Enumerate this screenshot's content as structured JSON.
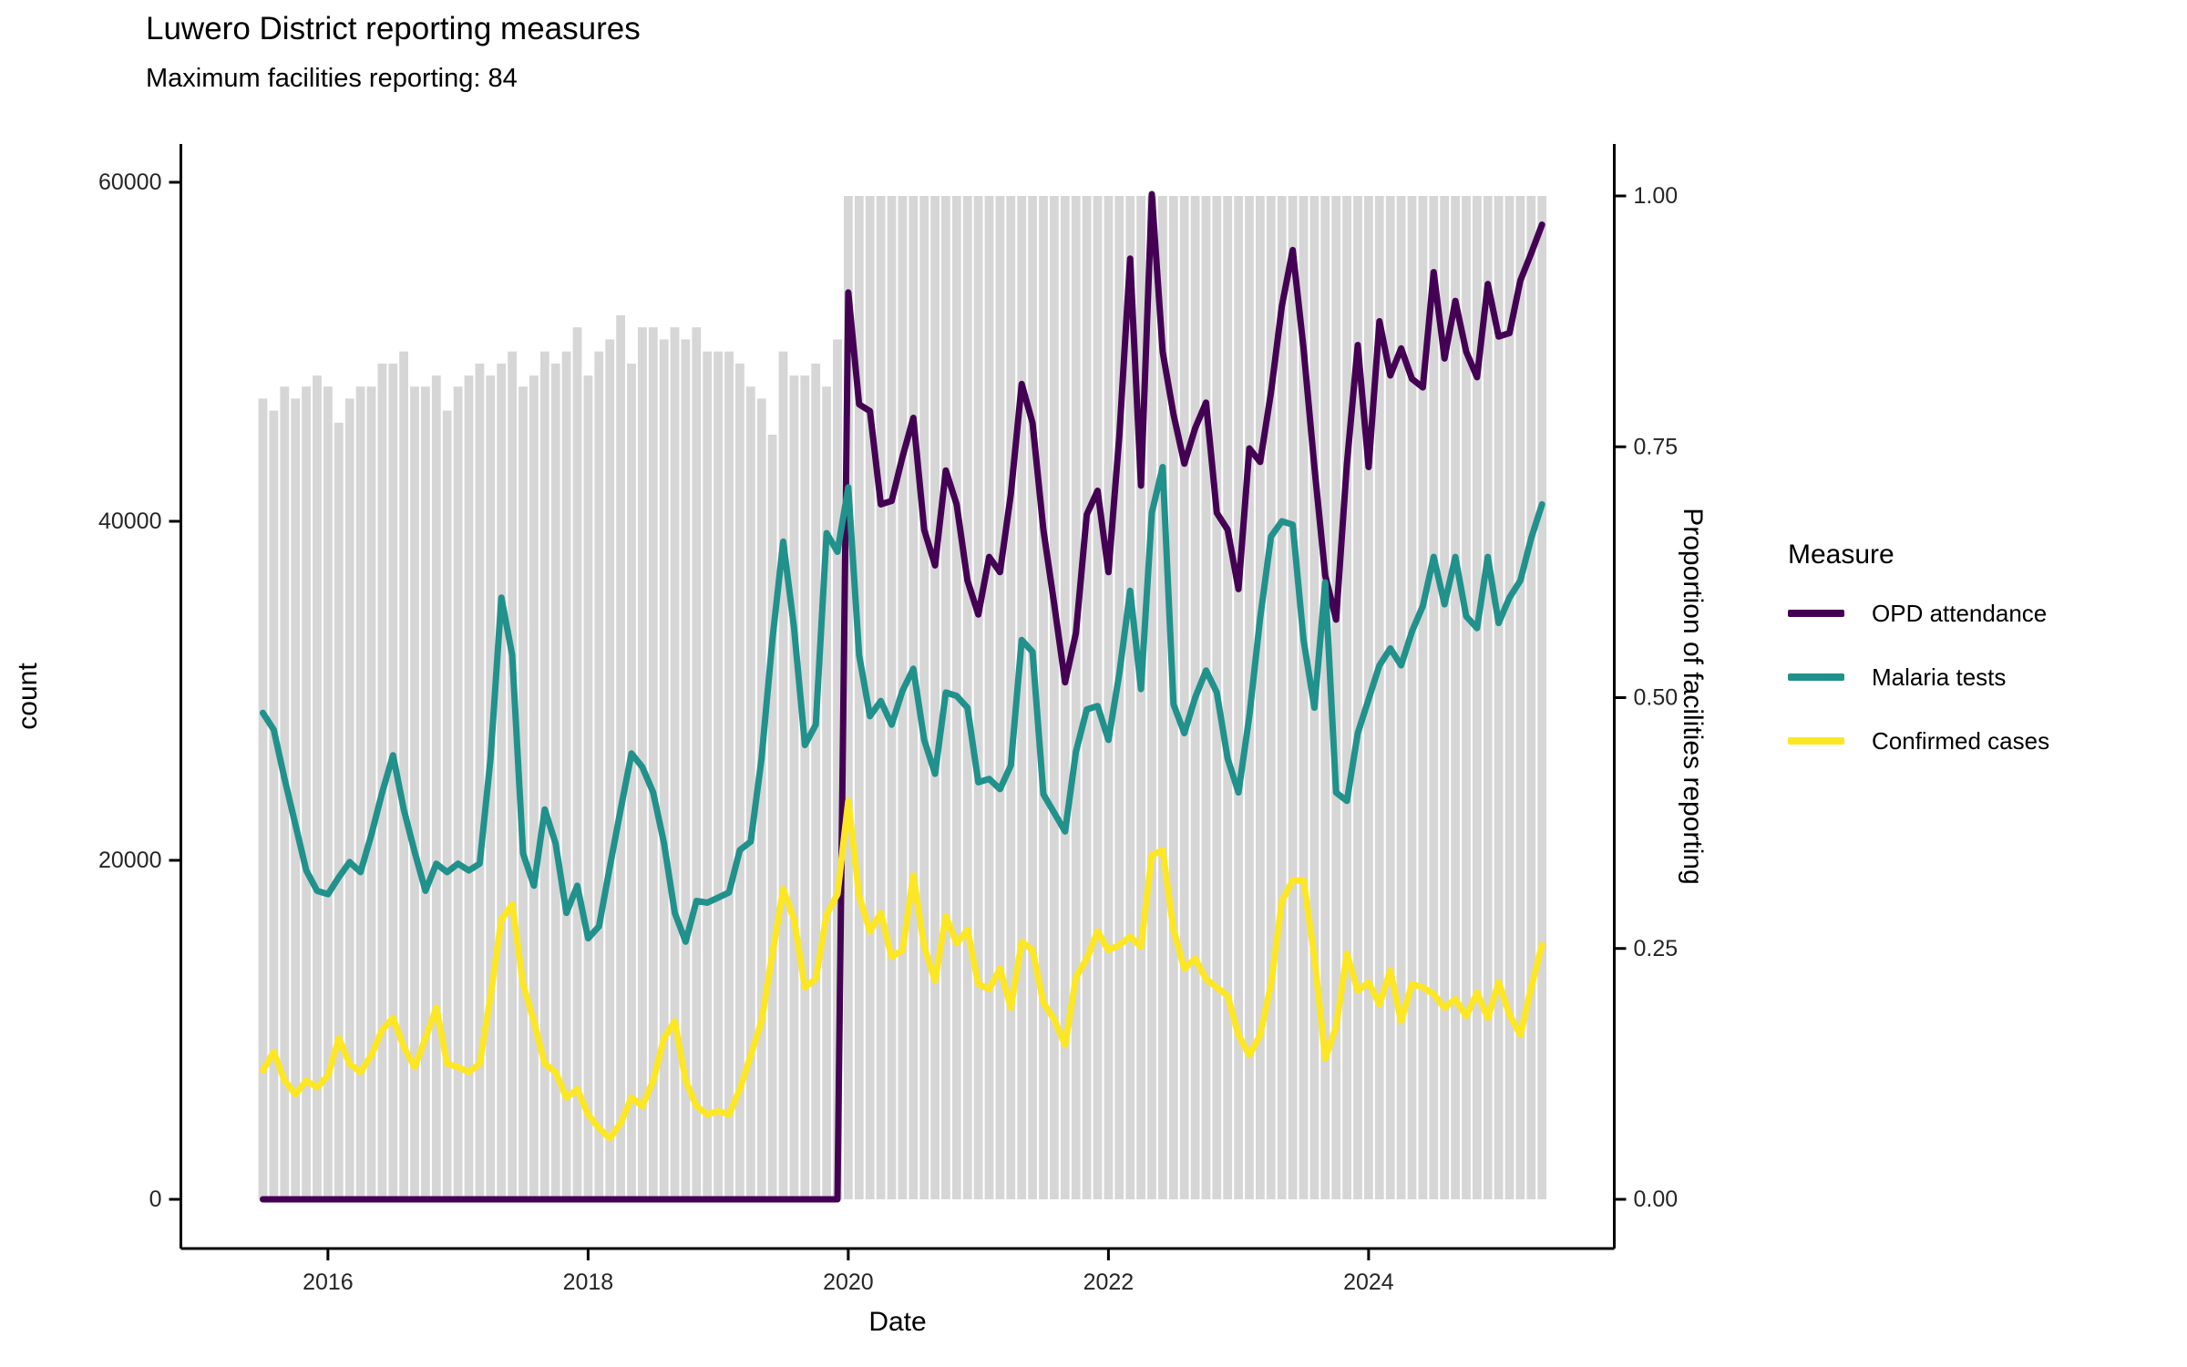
{
  "chart_data": {
    "type": "line+bar",
    "title": "Luwero District reporting measures",
    "subtitle": "Maximum facilities reporting: 84",
    "xlabel": "Date",
    "ylabel": "count",
    "y2label": "Proportion of facilities reporting",
    "legend_title": "Measure",
    "legend_position": "right",
    "grid": false,
    "background_color": "#ffffff",
    "y_axis": {
      "min": 0,
      "max": 60000,
      "ticks": [
        0,
        20000,
        40000,
        60000
      ],
      "labels": [
        "0",
        "20000",
        "40000",
        "60000"
      ]
    },
    "y2_axis": {
      "min": 0,
      "max": 1,
      "ticks": [
        0,
        0.25,
        0.5,
        0.75,
        1
      ],
      "labels": [
        "0.00",
        "0.25",
        "0.50",
        "0.75",
        "1.00"
      ]
    },
    "x_axis": {
      "tick_years": [
        2016,
        2018,
        2020,
        2022,
        2024
      ],
      "labels": [
        "2016",
        "2018",
        "2020",
        "2022",
        "2024"
      ]
    },
    "months": [
      "2015-07",
      "2015-08",
      "2015-09",
      "2015-10",
      "2015-11",
      "2015-12",
      "2016-01",
      "2016-02",
      "2016-03",
      "2016-04",
      "2016-05",
      "2016-06",
      "2016-07",
      "2016-08",
      "2016-09",
      "2016-10",
      "2016-11",
      "2016-12",
      "2017-01",
      "2017-02",
      "2017-03",
      "2017-04",
      "2017-05",
      "2017-06",
      "2017-07",
      "2017-08",
      "2017-09",
      "2017-10",
      "2017-11",
      "2017-12",
      "2018-01",
      "2018-02",
      "2018-03",
      "2018-04",
      "2018-05",
      "2018-06",
      "2018-07",
      "2018-08",
      "2018-09",
      "2018-10",
      "2018-11",
      "2018-12",
      "2019-01",
      "2019-02",
      "2019-03",
      "2019-04",
      "2019-05",
      "2019-06",
      "2019-07",
      "2019-08",
      "2019-09",
      "2019-10",
      "2019-11",
      "2019-12",
      "2020-01",
      "2020-02",
      "2020-03",
      "2020-04",
      "2020-05",
      "2020-06",
      "2020-07",
      "2020-08",
      "2020-09",
      "2020-10",
      "2020-11",
      "2020-12",
      "2021-01",
      "2021-02",
      "2021-03",
      "2021-04",
      "2021-05",
      "2021-06",
      "2021-07",
      "2021-08",
      "2021-09",
      "2021-10",
      "2021-11",
      "2021-12",
      "2022-01",
      "2022-02",
      "2022-03",
      "2022-04",
      "2022-05",
      "2022-06",
      "2022-07",
      "2022-08",
      "2022-09",
      "2022-10",
      "2022-11",
      "2022-12",
      "2023-01",
      "2023-02",
      "2023-03",
      "2023-04",
      "2023-05",
      "2023-06",
      "2023-07",
      "2023-08",
      "2023-09",
      "2023-10",
      "2023-11",
      "2023-12",
      "2024-01",
      "2024-02",
      "2024-03",
      "2024-04",
      "2024-05",
      "2024-06",
      "2024-07",
      "2024-08",
      "2024-09",
      "2024-10",
      "2024-11",
      "2024-12",
      "2025-01",
      "2025-02",
      "2025-03",
      "2025-04",
      "2025-05"
    ],
    "bars": {
      "name": "Proportion of facilities reporting",
      "color": "#d6d6d6",
      "values": [
        0.798,
        0.786,
        0.81,
        0.798,
        0.81,
        0.821,
        0.81,
        0.774,
        0.798,
        0.81,
        0.81,
        0.833,
        0.833,
        0.845,
        0.81,
        0.81,
        0.821,
        0.786,
        0.81,
        0.821,
        0.833,
        0.821,
        0.833,
        0.845,
        0.81,
        0.821,
        0.845,
        0.833,
        0.845,
        0.869,
        0.821,
        0.845,
        0.857,
        0.881,
        0.833,
        0.869,
        0.869,
        0.857,
        0.869,
        0.857,
        0.869,
        0.845,
        0.845,
        0.845,
        0.833,
        0.81,
        0.798,
        0.762,
        0.845,
        0.821,
        0.821,
        0.833,
        0.81,
        0.857,
        1,
        1,
        1,
        1,
        1,
        1,
        1,
        1,
        1,
        1,
        1,
        1,
        1,
        1,
        1,
        1,
        1,
        1,
        1,
        1,
        1,
        1,
        1,
        1,
        1,
        1,
        1,
        1,
        1,
        1,
        1,
        1,
        1,
        1,
        1,
        1,
        1,
        1,
        1,
        1,
        1,
        1,
        1,
        1,
        1,
        1,
        1,
        1,
        1,
        1,
        1,
        1,
        1,
        1,
        1,
        1,
        1,
        1,
        1,
        1,
        1,
        1,
        1,
        1,
        1
      ]
    },
    "series": [
      {
        "name": "OPD attendance",
        "color": "#440154",
        "values": [
          0,
          0,
          0,
          0,
          0,
          0,
          0,
          0,
          0,
          0,
          0,
          0,
          0,
          0,
          0,
          0,
          0,
          0,
          0,
          0,
          0,
          0,
          0,
          0,
          0,
          0,
          0,
          0,
          0,
          0,
          0,
          0,
          0,
          0,
          0,
          0,
          0,
          0,
          0,
          0,
          0,
          0,
          0,
          0,
          0,
          0,
          0,
          0,
          0,
          0,
          0,
          0,
          0,
          0,
          53500,
          46900,
          46500,
          41000,
          41200,
          43800,
          46100,
          39500,
          37400,
          43000,
          41000,
          36500,
          34500,
          37900,
          37000,
          41600,
          48100,
          45800,
          39500,
          35100,
          30500,
          33400,
          40400,
          41800,
          37000,
          45000,
          55500,
          42100,
          59300,
          50000,
          46300,
          43400,
          45500,
          47000,
          40500,
          39500,
          36000,
          44300,
          43500,
          47600,
          52700,
          56000,
          50200,
          43200,
          36800,
          34200,
          43400,
          50400,
          43200,
          51800,
          48600,
          50200,
          48400,
          47900,
          54700,
          49600,
          53000,
          50000,
          48500,
          54000,
          50900,
          51100,
          54200,
          55800,
          57500
        ]
      },
      {
        "name": "Malaria tests",
        "color": "#21918c",
        "values": [
          28700,
          27700,
          24800,
          22100,
          19400,
          18200,
          18000,
          19000,
          19900,
          19300,
          21500,
          24000,
          26200,
          23000,
          20500,
          18200,
          19800,
          19300,
          19800,
          19400,
          19800,
          26000,
          35500,
          32100,
          20400,
          18500,
          23000,
          21000,
          16900,
          18500,
          15400,
          16100,
          19600,
          23000,
          26300,
          25500,
          24000,
          21000,
          16900,
          15200,
          17600,
          17500,
          17800,
          18100,
          20600,
          21100,
          26000,
          33000,
          38800,
          33700,
          26800,
          28000,
          39300,
          38200,
          42000,
          32100,
          28500,
          29400,
          28000,
          30000,
          31300,
          27100,
          25100,
          29900,
          29700,
          29000,
          24600,
          24800,
          24200,
          25600,
          33000,
          32300,
          23900,
          22800,
          21700,
          26400,
          28900,
          29100,
          27100,
          31000,
          35900,
          30100,
          40500,
          43200,
          29200,
          27500,
          29600,
          31200,
          29900,
          26000,
          24000,
          28500,
          34300,
          39100,
          40000,
          39800,
          33000,
          29000,
          36400,
          24000,
          23500,
          27500,
          29500,
          31500,
          32500,
          31500,
          33500,
          35000,
          37900,
          35100,
          37900,
          34400,
          33700,
          37900,
          34000,
          35500,
          36500,
          39000,
          41000
        ]
      },
      {
        "name": "Confirmed cases",
        "color": "#fde725",
        "values": [
          7600,
          8700,
          7000,
          6200,
          7000,
          6600,
          7300,
          9500,
          8000,
          7500,
          8500,
          10000,
          10700,
          9000,
          7800,
          9500,
          11300,
          8000,
          7800,
          7500,
          8000,
          12000,
          16500,
          17400,
          12700,
          10500,
          8000,
          7500,
          6000,
          6500,
          5000,
          4200,
          3600,
          4500,
          6000,
          5500,
          7000,
          9500,
          10500,
          7000,
          5500,
          5000,
          5200,
          5000,
          6500,
          8500,
          10500,
          14500,
          18300,
          16500,
          12500,
          13000,
          16800,
          18000,
          23500,
          17900,
          15800,
          16900,
          14300,
          14700,
          19100,
          14900,
          12900,
          16700,
          15100,
          15900,
          12700,
          12400,
          13600,
          11300,
          15200,
          14700,
          11600,
          10600,
          9100,
          13100,
          14200,
          15800,
          14700,
          15000,
          15500,
          14900,
          20300,
          20600,
          15900,
          13600,
          14200,
          13000,
          12500,
          12000,
          9700,
          8500,
          9700,
          12700,
          17600,
          18800,
          18800,
          14300,
          8300,
          10200,
          14500,
          12300,
          12800,
          11500,
          13500,
          10500,
          12700,
          12500,
          12100,
          11300,
          11800,
          10800,
          12200,
          10700,
          12800,
          10900,
          9700,
          12500,
          15000
        ]
      }
    ]
  }
}
